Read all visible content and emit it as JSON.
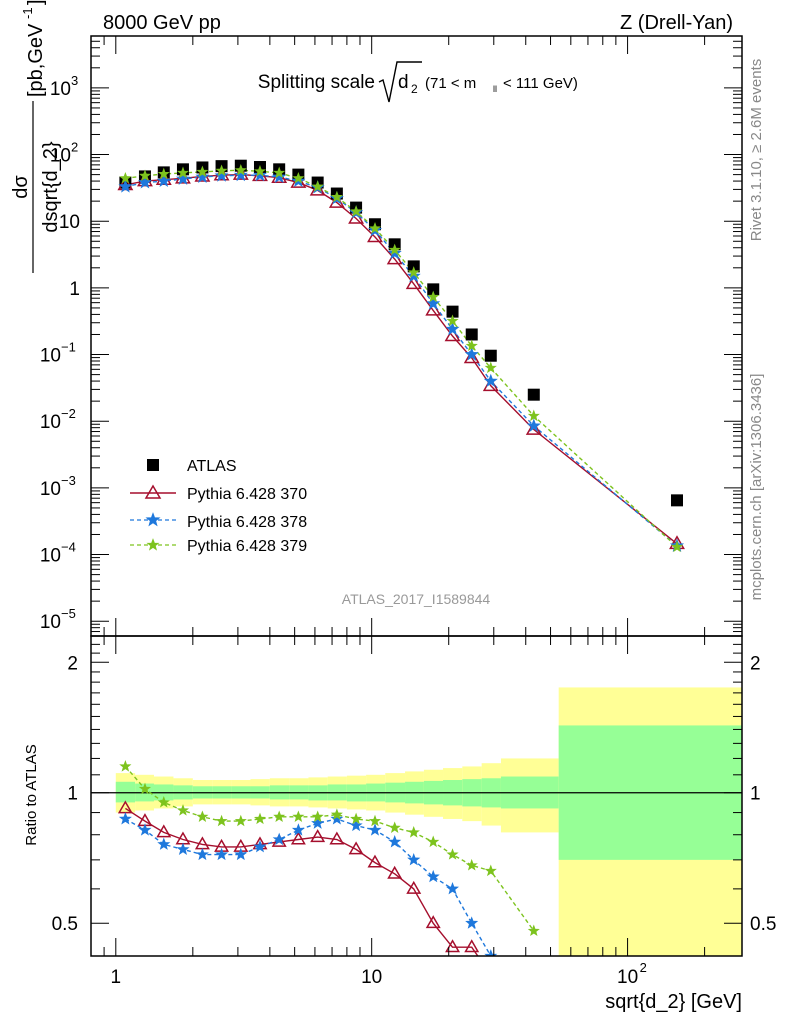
{
  "header": {
    "left": "8000 GeV pp",
    "right": "Z (Drell-Yan)"
  },
  "side_labels": {
    "rivet": "Rivet 3.1.10, ≥ 2.6M events",
    "mcplots": "mcplots.cern.ch [arXiv:1306.3436]"
  },
  "watermark": "ATLAS_2017_I1589844",
  "colors": {
    "data": "#000000",
    "p370": "#a50f2d",
    "p378": "#1e78dc",
    "p379": "#7dc31e",
    "band_outer": "#ffff96",
    "band_inner": "#96ff96"
  },
  "chart_data": [
    {
      "type": "scatter",
      "panel": "main",
      "title_main": "Splitting scale",
      "title_sqrt": "d",
      "title_sub": "2",
      "title_range": "(71 < m",
      "title_range_sub": "ll",
      "title_range_end": "< 111 GeV)",
      "ylabel_num": "dσ",
      "ylabel_den": "dsqrt{d_2}",
      "ylabel_unit": "[pb,GeV",
      "ylabel_exp": "-1",
      "ylabel_close": "]",
      "x_log": true,
      "y_log": true,
      "xlim": [
        0.8,
        280
      ],
      "ylim": [
        6e-06,
        6000
      ],
      "yticks": [
        {
          "v": 1000.0,
          "base": "10",
          "exp": "3"
        },
        {
          "v": 100.0,
          "base": "10",
          "exp": "2"
        },
        {
          "v": 10,
          "base": "10",
          "exp": ""
        },
        {
          "v": 1,
          "base": "1",
          "exp": ""
        },
        {
          "v": 0.1,
          "base": "10",
          "exp": "−1"
        },
        {
          "v": 0.01,
          "base": "10",
          "exp": "−2"
        },
        {
          "v": 0.001,
          "base": "10",
          "exp": "−3"
        },
        {
          "v": 0.0001,
          "base": "10",
          "exp": "−4"
        },
        {
          "v": 1e-05,
          "base": "10",
          "exp": "−5"
        }
      ],
      "legend_position": "center-left",
      "series": [
        {
          "name": "ATLAS",
          "style": "square",
          "x": [
            1.09,
            1.3,
            1.54,
            1.83,
            2.18,
            2.59,
            3.08,
            3.66,
            4.35,
            5.17,
            6.15,
            7.31,
            8.69,
            10.3,
            12.3,
            14.6,
            17.4,
            20.7,
            24.6,
            29.2,
            43.0,
            156.0
          ],
          "y": [
            38,
            47,
            54,
            60,
            64,
            67,
            68,
            65,
            60,
            50,
            38,
            26,
            16,
            9.0,
            4.5,
            2.1,
            0.95,
            0.44,
            0.2,
            0.096,
            0.025,
            0.00065
          ]
        },
        {
          "name": "Pythia 6.428 370",
          "style": "triangle-open",
          "x": [
            1.09,
            1.3,
            1.54,
            1.83,
            2.18,
            2.59,
            3.08,
            3.66,
            4.35,
            5.17,
            6.15,
            7.31,
            8.69,
            10.3,
            12.3,
            14.6,
            17.4,
            20.7,
            24.6,
            29.2,
            43.0,
            156.0
          ],
          "y": [
            35,
            40,
            42,
            44,
            47,
            49,
            50,
            48,
            45,
            38,
            29,
            19,
            11.0,
            5.8,
            2.7,
            1.15,
            0.46,
            0.19,
            0.089,
            0.034,
            0.0075,
            0.000145
          ]
        },
        {
          "name": "Pythia 6.428 378",
          "style": "star",
          "x": [
            1.09,
            1.3,
            1.54,
            1.83,
            2.18,
            2.59,
            3.08,
            3.66,
            4.35,
            5.17,
            6.15,
            7.31,
            8.69,
            10.3,
            12.3,
            14.6,
            17.4,
            20.7,
            24.6,
            29.2,
            43.0,
            156.0
          ],
          "y": [
            33,
            38,
            40,
            43,
            46,
            48,
            49,
            49,
            46,
            40,
            32,
            22,
            13.5,
            7.3,
            3.3,
            1.5,
            0.58,
            0.24,
            0.1,
            0.04,
            0.0085,
            0.000135
          ]
        },
        {
          "name": "Pythia 6.428 379",
          "style": "star-small",
          "x": [
            1.09,
            1.3,
            1.54,
            1.83,
            2.18,
            2.59,
            3.08,
            3.66,
            4.35,
            5.17,
            6.15,
            7.31,
            8.69,
            10.3,
            12.3,
            14.6,
            17.4,
            20.7,
            24.6,
            29.2,
            43.0,
            156.0
          ],
          "y": [
            44,
            48,
            51,
            53,
            55,
            57,
            58,
            56,
            53,
            44,
            33,
            23,
            14,
            7.8,
            3.7,
            1.7,
            0.73,
            0.32,
            0.135,
            0.063,
            0.012,
            0.00013
          ]
        }
      ]
    },
    {
      "type": "scatter",
      "panel": "ratio",
      "ylabel": "Ratio to ATLAS",
      "xlabel": "sqrt{d_2} [GeV]",
      "x_log": true,
      "xlim": [
        0.8,
        280
      ],
      "ylim": [
        0.42,
        2.3
      ],
      "yticks": [
        0.5,
        1,
        2
      ],
      "ytick_labels": [
        "0.5",
        "1",
        "2"
      ],
      "xticks": [
        1,
        10,
        100
      ],
      "xtick_labels": [
        {
          "base": "1",
          "exp": ""
        },
        {
          "base": "10",
          "exp": ""
        },
        {
          "base": "10",
          "exp": "2"
        }
      ],
      "bands": {
        "edges": [
          1,
          1.19,
          1.41,
          1.68,
          2.0,
          2.38,
          2.83,
          3.36,
          4.0,
          4.76,
          5.66,
          6.73,
          8.0,
          9.51,
          11.3,
          13.5,
          16.0,
          19.0,
          22.6,
          26.9,
          32.0,
          53.8,
          280
        ],
        "outer_lo": [
          0.9,
          0.91,
          0.92,
          0.93,
          0.94,
          0.94,
          0.94,
          0.935,
          0.93,
          0.93,
          0.925,
          0.92,
          0.915,
          0.91,
          0.9,
          0.89,
          0.88,
          0.87,
          0.86,
          0.84,
          0.81,
          0.0
        ],
        "outer_hi": [
          1.11,
          1.1,
          1.09,
          1.08,
          1.07,
          1.07,
          1.07,
          1.075,
          1.08,
          1.08,
          1.085,
          1.09,
          1.095,
          1.1,
          1.11,
          1.12,
          1.13,
          1.14,
          1.15,
          1.17,
          1.2,
          1.75
        ],
        "inner_lo": [
          0.95,
          0.955,
          0.96,
          0.965,
          0.97,
          0.97,
          0.97,
          0.97,
          0.965,
          0.965,
          0.96,
          0.96,
          0.955,
          0.955,
          0.95,
          0.945,
          0.94,
          0.935,
          0.93,
          0.925,
          0.92,
          0.7
        ],
        "inner_hi": [
          1.06,
          1.05,
          1.045,
          1.04,
          1.035,
          1.035,
          1.035,
          1.035,
          1.04,
          1.04,
          1.04,
          1.045,
          1.045,
          1.05,
          1.055,
          1.06,
          1.065,
          1.07,
          1.075,
          1.08,
          1.09,
          1.43
        ]
      },
      "series": [
        {
          "name": "Pythia 6.428 370",
          "x": [
            1.09,
            1.3,
            1.54,
            1.83,
            2.18,
            2.59,
            3.08,
            3.66,
            4.35,
            5.17,
            6.15,
            7.31,
            8.69,
            10.3,
            12.3,
            14.6,
            17.4,
            20.7,
            24.6,
            29.2
          ],
          "y": [
            0.92,
            0.86,
            0.81,
            0.78,
            0.76,
            0.75,
            0.75,
            0.76,
            0.77,
            0.78,
            0.79,
            0.78,
            0.74,
            0.69,
            0.65,
            0.6,
            0.5,
            0.44,
            0.44,
            0.38
          ]
        },
        {
          "name": "Pythia 6.428 378",
          "x": [
            1.09,
            1.3,
            1.54,
            1.83,
            2.18,
            2.59,
            3.08,
            3.66,
            4.35,
            5.17,
            6.15,
            7.31,
            8.69,
            10.3,
            12.3,
            14.6,
            17.4,
            20.7,
            24.6,
            29.2
          ],
          "y": [
            0.87,
            0.82,
            0.76,
            0.74,
            0.72,
            0.72,
            0.72,
            0.75,
            0.78,
            0.82,
            0.85,
            0.87,
            0.84,
            0.82,
            0.77,
            0.7,
            0.64,
            0.6,
            0.5,
            0.42
          ]
        },
        {
          "name": "Pythia 6.428 379",
          "x": [
            1.09,
            1.3,
            1.54,
            1.83,
            2.18,
            2.59,
            3.08,
            3.66,
            4.35,
            5.17,
            6.15,
            7.31,
            8.69,
            10.3,
            12.3,
            14.6,
            17.4,
            20.7,
            24.6,
            29.2,
            43.0
          ],
          "y": [
            1.15,
            1.02,
            0.95,
            0.91,
            0.88,
            0.86,
            0.86,
            0.87,
            0.88,
            0.88,
            0.88,
            0.89,
            0.87,
            0.86,
            0.83,
            0.81,
            0.77,
            0.72,
            0.68,
            0.66,
            0.48
          ]
        }
      ]
    }
  ]
}
